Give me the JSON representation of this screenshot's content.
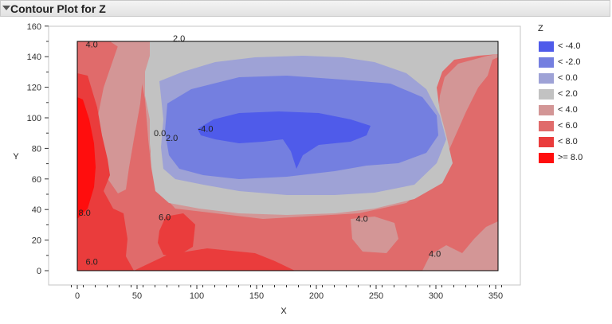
{
  "header": {
    "title": "Contour Plot for Z"
  },
  "chart_data": {
    "type": "contour",
    "xlabel": "X",
    "ylabel": "Y",
    "xlim": [
      -5,
      360
    ],
    "ylim": [
      -5,
      160
    ],
    "xticks": [
      0,
      50,
      100,
      150,
      200,
      250,
      300,
      350
    ],
    "yticks": [
      0,
      20,
      40,
      60,
      80,
      100,
      120,
      140,
      160
    ],
    "legend_title": "Z",
    "legend_position": "right",
    "levels": [
      {
        "label": "< -4.0",
        "color": "#4f5bea"
      },
      {
        "label": "< -2.0",
        "color": "#747fe0"
      },
      {
        "label": "< 0.0",
        "color": "#9ea2d6"
      },
      {
        "label": "< 2.0",
        "color": "#c2c2c2"
      },
      {
        "label": "< 4.0",
        "color": "#d39696"
      },
      {
        "label": "< 6.0",
        "color": "#e06b6b"
      },
      {
        "label": "< 8.0",
        "color": "#ea3c3c"
      },
      {
        "label": ">= 8.0",
        "color": "#ff0d0d"
      }
    ],
    "contour_labels": [
      {
        "text": "4.0",
        "x": 7,
        "y": 146
      },
      {
        "text": "2.0",
        "x": 80,
        "y": 150
      },
      {
        "text": "0.0",
        "x": 64,
        "y": 88
      },
      {
        "text": "2.0",
        "x": 74,
        "y": 85
      },
      {
        "text": "-4.0",
        "x": 101,
        "y": 91
      },
      {
        "text": "8.0",
        "x": 1,
        "y": 36
      },
      {
        "text": "6.0",
        "x": 68,
        "y": 33
      },
      {
        "text": "4.0",
        "x": 233,
        "y": 32
      },
      {
        "text": "4.0",
        "x": 294,
        "y": 9
      },
      {
        "text": "6.0",
        "x": 7,
        "y": 4
      }
    ]
  }
}
